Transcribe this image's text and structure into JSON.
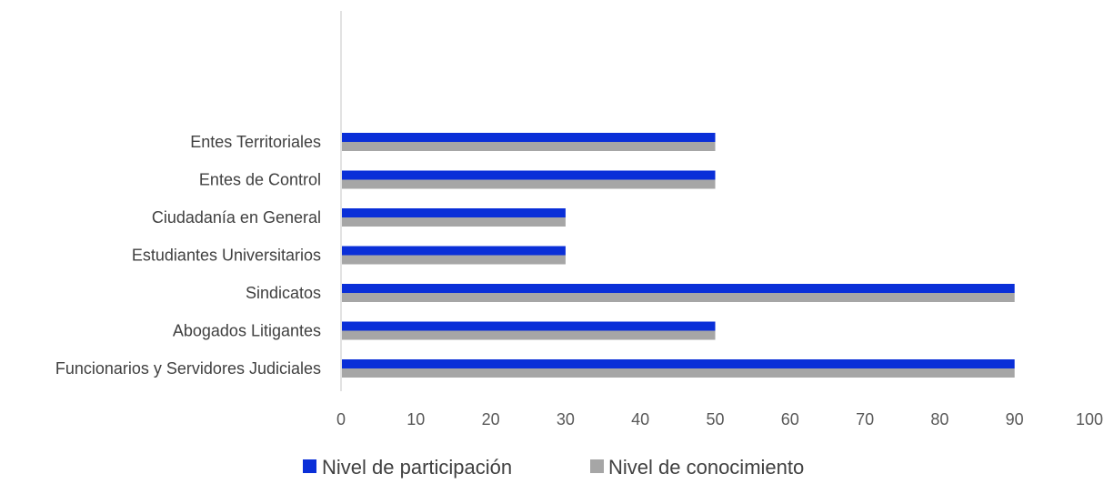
{
  "chart_data": {
    "type": "bar",
    "orientation": "horizontal",
    "title": "",
    "xlabel": "",
    "ylabel": "",
    "categories": [
      "Funcionarios y Servidores Judiciales",
      "Abogados Litigantes",
      "Sindicatos",
      "Estudiantes Universitarios",
      "Ciudadanía en General",
      "Entes de Control",
      "Entes Territoriales"
    ],
    "series": [
      {
        "name": "Nivel de participación",
        "color": "#0a2fd8",
        "values": [
          90,
          50,
          90,
          30,
          30,
          50,
          50
        ]
      },
      {
        "name": "Nivel de conocimiento",
        "color": "#a6a6a6",
        "values": [
          90,
          50,
          90,
          30,
          30,
          50,
          50
        ]
      }
    ],
    "xlim": [
      0,
      100
    ],
    "xticks": [
      "0",
      "10",
      "20",
      "30",
      "40",
      "50",
      "60",
      "70",
      "80",
      "90",
      "100"
    ],
    "grid": false,
    "legend_position": "bottom"
  }
}
